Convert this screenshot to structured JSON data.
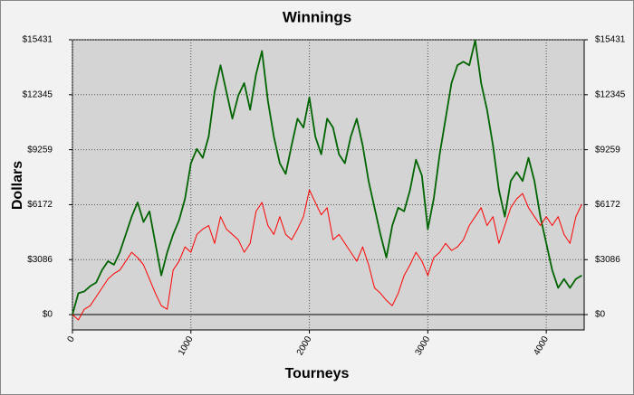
{
  "chart_data": {
    "type": "line",
    "title": "Winnings",
    "x_label": "Tourneys",
    "y_label": "Dollars",
    "x": [
      0,
      50,
      100,
      150,
      200,
      250,
      300,
      350,
      400,
      450,
      500,
      550,
      600,
      650,
      700,
      750,
      800,
      850,
      900,
      950,
      1000,
      1050,
      1100,
      1150,
      1200,
      1250,
      1300,
      1350,
      1400,
      1450,
      1500,
      1550,
      1600,
      1650,
      1700,
      1750,
      1800,
      1850,
      1900,
      1950,
      2000,
      2050,
      2100,
      2150,
      2200,
      2250,
      2300,
      2350,
      2400,
      2450,
      2500,
      2550,
      2600,
      2650,
      2700,
      2750,
      2800,
      2850,
      2900,
      2950,
      3000,
      3050,
      3100,
      3150,
      3200,
      3250,
      3300,
      3350,
      3400,
      3450,
      3500,
      3550,
      3600,
      3650,
      3700,
      3750,
      3800,
      3850,
      3900,
      3950,
      4000,
      4050,
      4100,
      4150,
      4200,
      4250,
      4300
    ],
    "series": [
      {
        "color": "#006400",
        "values": [
          0,
          1200,
          1300,
          1600,
          1800,
          2500,
          3000,
          2800,
          3500,
          4500,
          5500,
          6300,
          5200,
          5800,
          4000,
          2200,
          3500,
          4500,
          5300,
          6500,
          8500,
          9300,
          8800,
          10000,
          12500,
          14000,
          12500,
          11000,
          12300,
          13000,
          11500,
          13500,
          14800,
          12000,
          10000,
          8500,
          7900,
          9500,
          11000,
          10500,
          12200,
          10000,
          9000,
          11000,
          10500,
          9000,
          8500,
          10000,
          11000,
          9500,
          7500,
          6000,
          4500,
          3200,
          5000,
          6000,
          5800,
          7000,
          8700,
          7800,
          4800,
          6500,
          9000,
          11000,
          13000,
          14000,
          14200,
          14000,
          15400,
          13000,
          11500,
          9500,
          7000,
          5500,
          7500,
          8000,
          7500,
          8800,
          7500,
          5500,
          4000,
          2500,
          1500,
          2000,
          1500,
          2000,
          2200
        ]
      },
      {
        "color": "#ff0000",
        "values": [
          0,
          -300,
          300,
          500,
          1000,
          1500,
          2000,
          2300,
          2500,
          3000,
          3500,
          3200,
          2800,
          2000,
          1200,
          500,
          300,
          2500,
          3000,
          3800,
          3500,
          4500,
          4800,
          5000,
          4000,
          5500,
          4800,
          4500,
          4200,
          3500,
          4000,
          5800,
          6300,
          5000,
          4500,
          5500,
          4500,
          4200,
          4800,
          5500,
          7000,
          6300,
          5600,
          6000,
          4200,
          4500,
          4000,
          3500,
          3000,
          3800,
          2800,
          1500,
          1200,
          800,
          500,
          1200,
          2200,
          2800,
          3500,
          3000,
          2200,
          3200,
          3500,
          4000,
          3600,
          3800,
          4200,
          5000,
          5500,
          6000,
          5000,
          5500,
          4000,
          5000,
          6000,
          6500,
          6800,
          6000,
          5500,
          5000,
          5500,
          5000,
          5500,
          4500,
          4000,
          5500,
          6200
        ]
      }
    ],
    "xlim": [
      0,
      4320
    ],
    "xticks": [
      0,
      1000,
      2000,
      3000,
      4000
    ],
    "ylim": [
      -860,
      15431
    ],
    "yticks": [
      {
        "value": 0,
        "label": "$0"
      },
      {
        "value": 3086,
        "label": "$3086"
      },
      {
        "value": 6172,
        "label": "$6172"
      },
      {
        "value": 9259,
        "label": "$9259"
      },
      {
        "value": 12345,
        "label": "$12345"
      },
      {
        "value": 15431,
        "label": "$15431"
      }
    ],
    "grid": true,
    "plot_background": "#d4d4d4"
  }
}
